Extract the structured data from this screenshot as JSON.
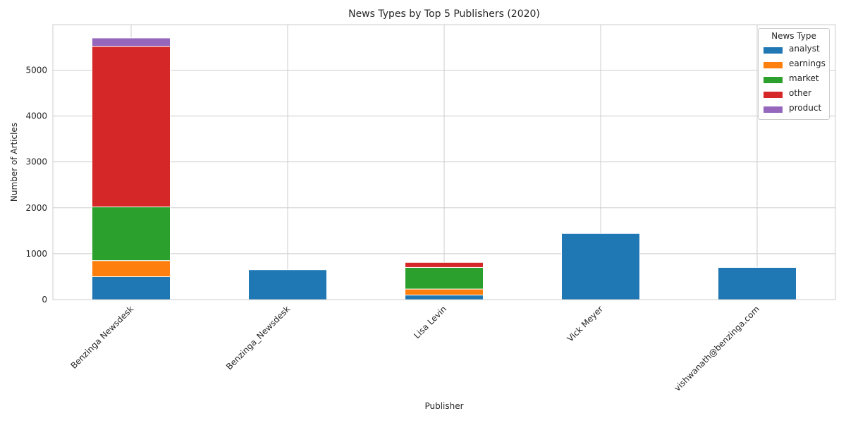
{
  "chart_data": {
    "type": "bar",
    "stacked": true,
    "title": "News Types by Top 5 Publishers (2020)",
    "xlabel": "Publisher",
    "ylabel": "Number of Articles",
    "categories": [
      "Benzinga Newsdesk",
      "Benzinga_Newsdesk",
      "Lisa Levin",
      "Vick Meyer",
      "vishwanath@benzinga.com"
    ],
    "ylim": [
      0,
      5990
    ],
    "yticks": [
      0,
      1000,
      2000,
      3000,
      4000,
      5000
    ],
    "grid": true,
    "legend": {
      "title": "News Type",
      "placement": "top-right"
    },
    "series": [
      {
        "name": "analyst",
        "color": "#1f77b4",
        "values": [
          500,
          650,
          100,
          1440,
          700
        ]
      },
      {
        "name": "earnings",
        "color": "#ff7f0e",
        "values": [
          350,
          0,
          130,
          0,
          0
        ]
      },
      {
        "name": "market",
        "color": "#2ca02c",
        "values": [
          1170,
          0,
          470,
          0,
          0
        ]
      },
      {
        "name": "other",
        "color": "#d62728",
        "values": [
          3500,
          0,
          110,
          0,
          0
        ]
      },
      {
        "name": "product",
        "color": "#9467bd",
        "values": [
          180,
          0,
          0,
          0,
          0
        ]
      }
    ]
  }
}
